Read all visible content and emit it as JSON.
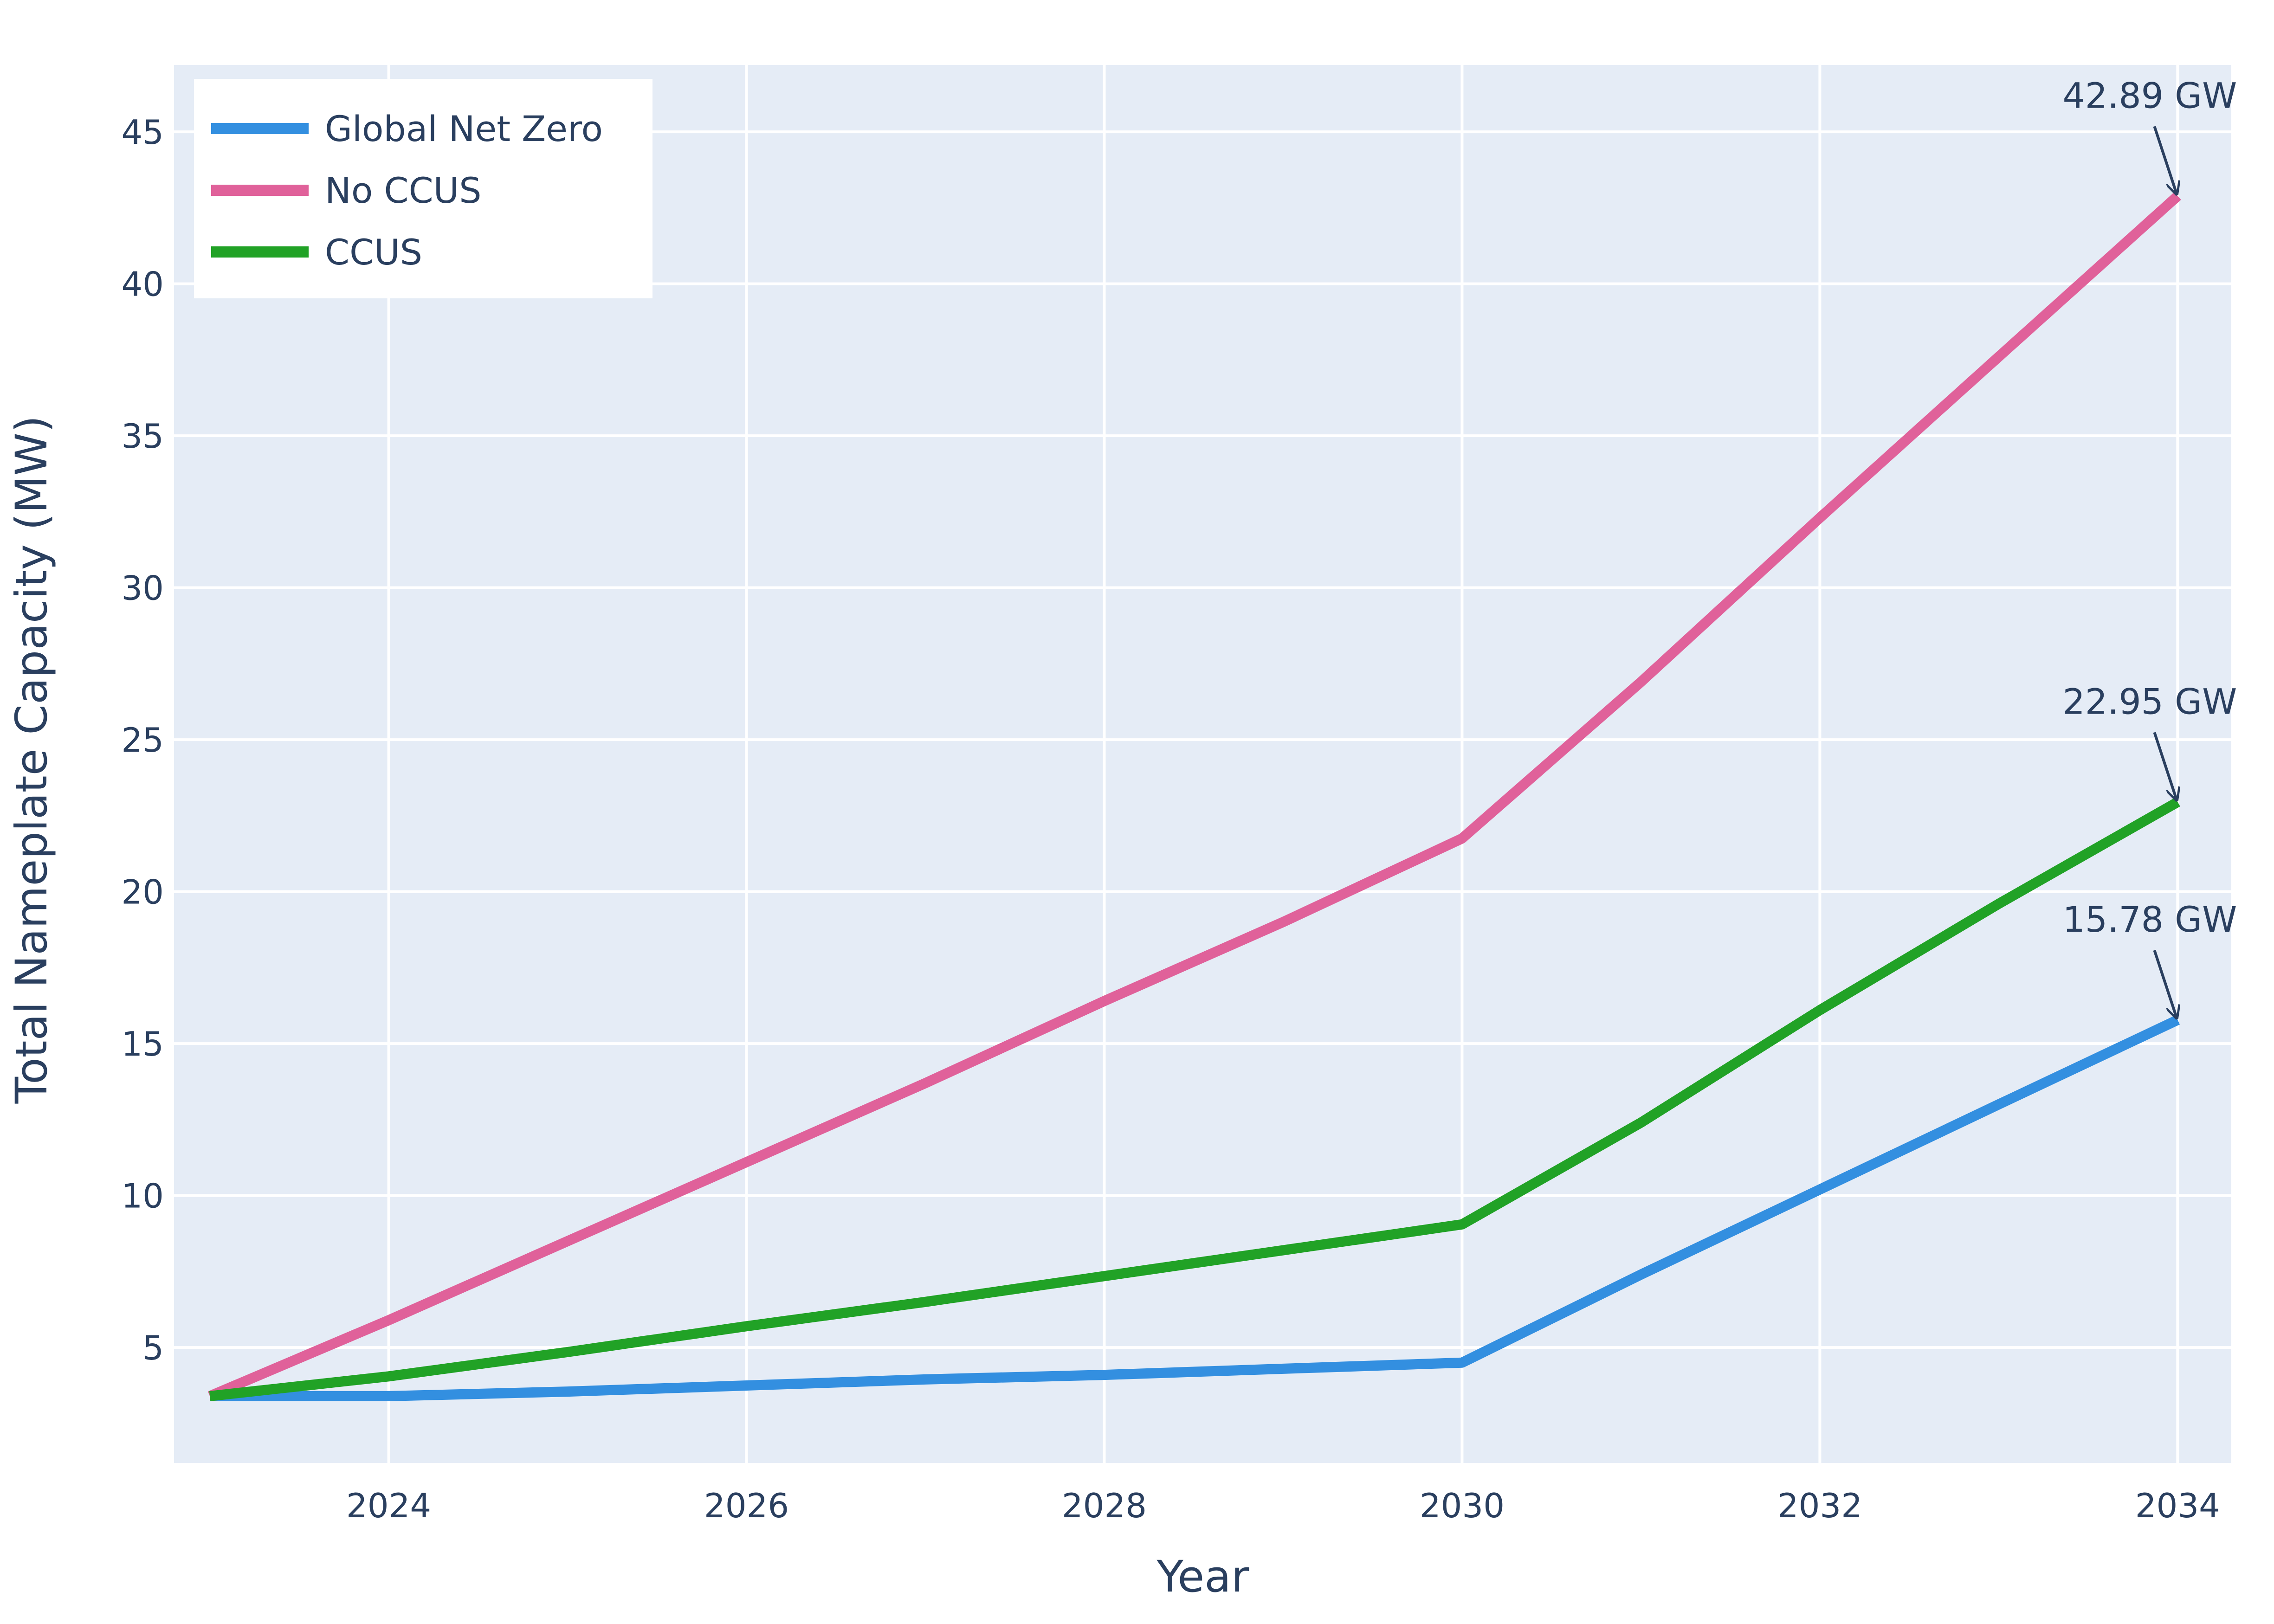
{
  "chart_data": {
    "type": "line",
    "xlabel": "Year",
    "ylabel": "Total Nameplate Capacity (MW)",
    "xlim": [
      2022.8,
      2034.3
    ],
    "ylim": [
      1.2,
      47.2
    ],
    "x_ticks": [
      2024,
      2026,
      2028,
      2030,
      2032,
      2034
    ],
    "y_ticks": [
      5,
      10,
      15,
      20,
      25,
      30,
      35,
      40,
      45
    ],
    "grid": true,
    "legend_position": "top-left",
    "background_color": "#e5ecf6",
    "series": [
      {
        "name": "Global Net Zero",
        "color": "#338fe0",
        "x": [
          2023,
          2024,
          2025,
          2026,
          2027,
          2028,
          2029,
          2030,
          2031,
          2032,
          2033,
          2034
        ],
        "values": [
          3.4,
          3.4,
          3.55,
          3.75,
          3.95,
          4.1,
          4.3,
          4.5,
          7.4,
          10.2,
          13.0,
          15.78
        ]
      },
      {
        "name": "No CCUS",
        "color": "#e0619a",
        "x": [
          2023,
          2024,
          2025,
          2026,
          2027,
          2028,
          2029,
          2030,
          2031,
          2032,
          2033,
          2034
        ],
        "values": [
          3.4,
          5.9,
          8.5,
          11.1,
          13.7,
          16.4,
          19.0,
          21.75,
          26.9,
          32.3,
          37.6,
          42.89
        ]
      },
      {
        "name": "CCUS",
        "color": "#21a226",
        "x": [
          2023,
          2024,
          2025,
          2026,
          2027,
          2028,
          2029,
          2030,
          2031,
          2032,
          2033,
          2034
        ],
        "values": [
          3.4,
          4.05,
          4.85,
          5.7,
          6.5,
          7.35,
          8.2,
          9.05,
          12.4,
          16.1,
          19.6,
          22.95
        ]
      }
    ],
    "annotations": [
      {
        "text": "42.89 GW",
        "x": 2034,
        "y": 42.89
      },
      {
        "text": "22.95 GW",
        "x": 2034,
        "y": 22.95
      },
      {
        "text": "15.78 GW",
        "x": 2034,
        "y": 15.78
      }
    ]
  }
}
